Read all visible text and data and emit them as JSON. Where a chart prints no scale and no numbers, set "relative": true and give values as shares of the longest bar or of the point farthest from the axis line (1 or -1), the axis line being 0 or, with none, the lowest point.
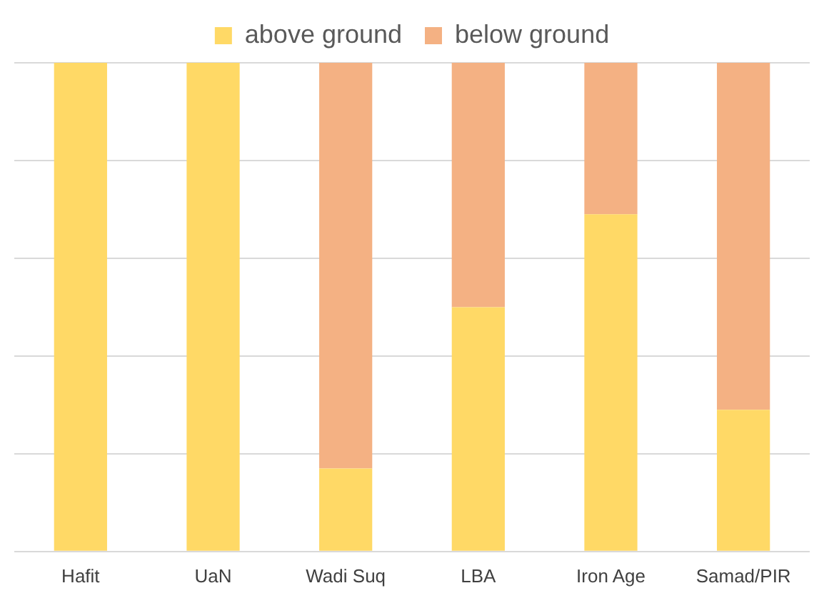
{
  "chart_data": {
    "type": "bar",
    "stacked": true,
    "relative": true,
    "grid": "y",
    "legend": "top",
    "categories": [
      "Hafit",
      "UaN",
      "Wadi Suq",
      "LBA",
      "Iron Age",
      "Samad/PIR"
    ],
    "series": [
      {
        "name": "above ground",
        "color": "#ffd966",
        "values": [
          1,
          1,
          0.17,
          0.5,
          0.69,
          0.29
        ]
      },
      {
        "name": "below ground",
        "color": "#f4b183",
        "values": [
          0,
          0,
          0.83,
          0.5,
          0.31,
          0.71
        ]
      }
    ]
  }
}
